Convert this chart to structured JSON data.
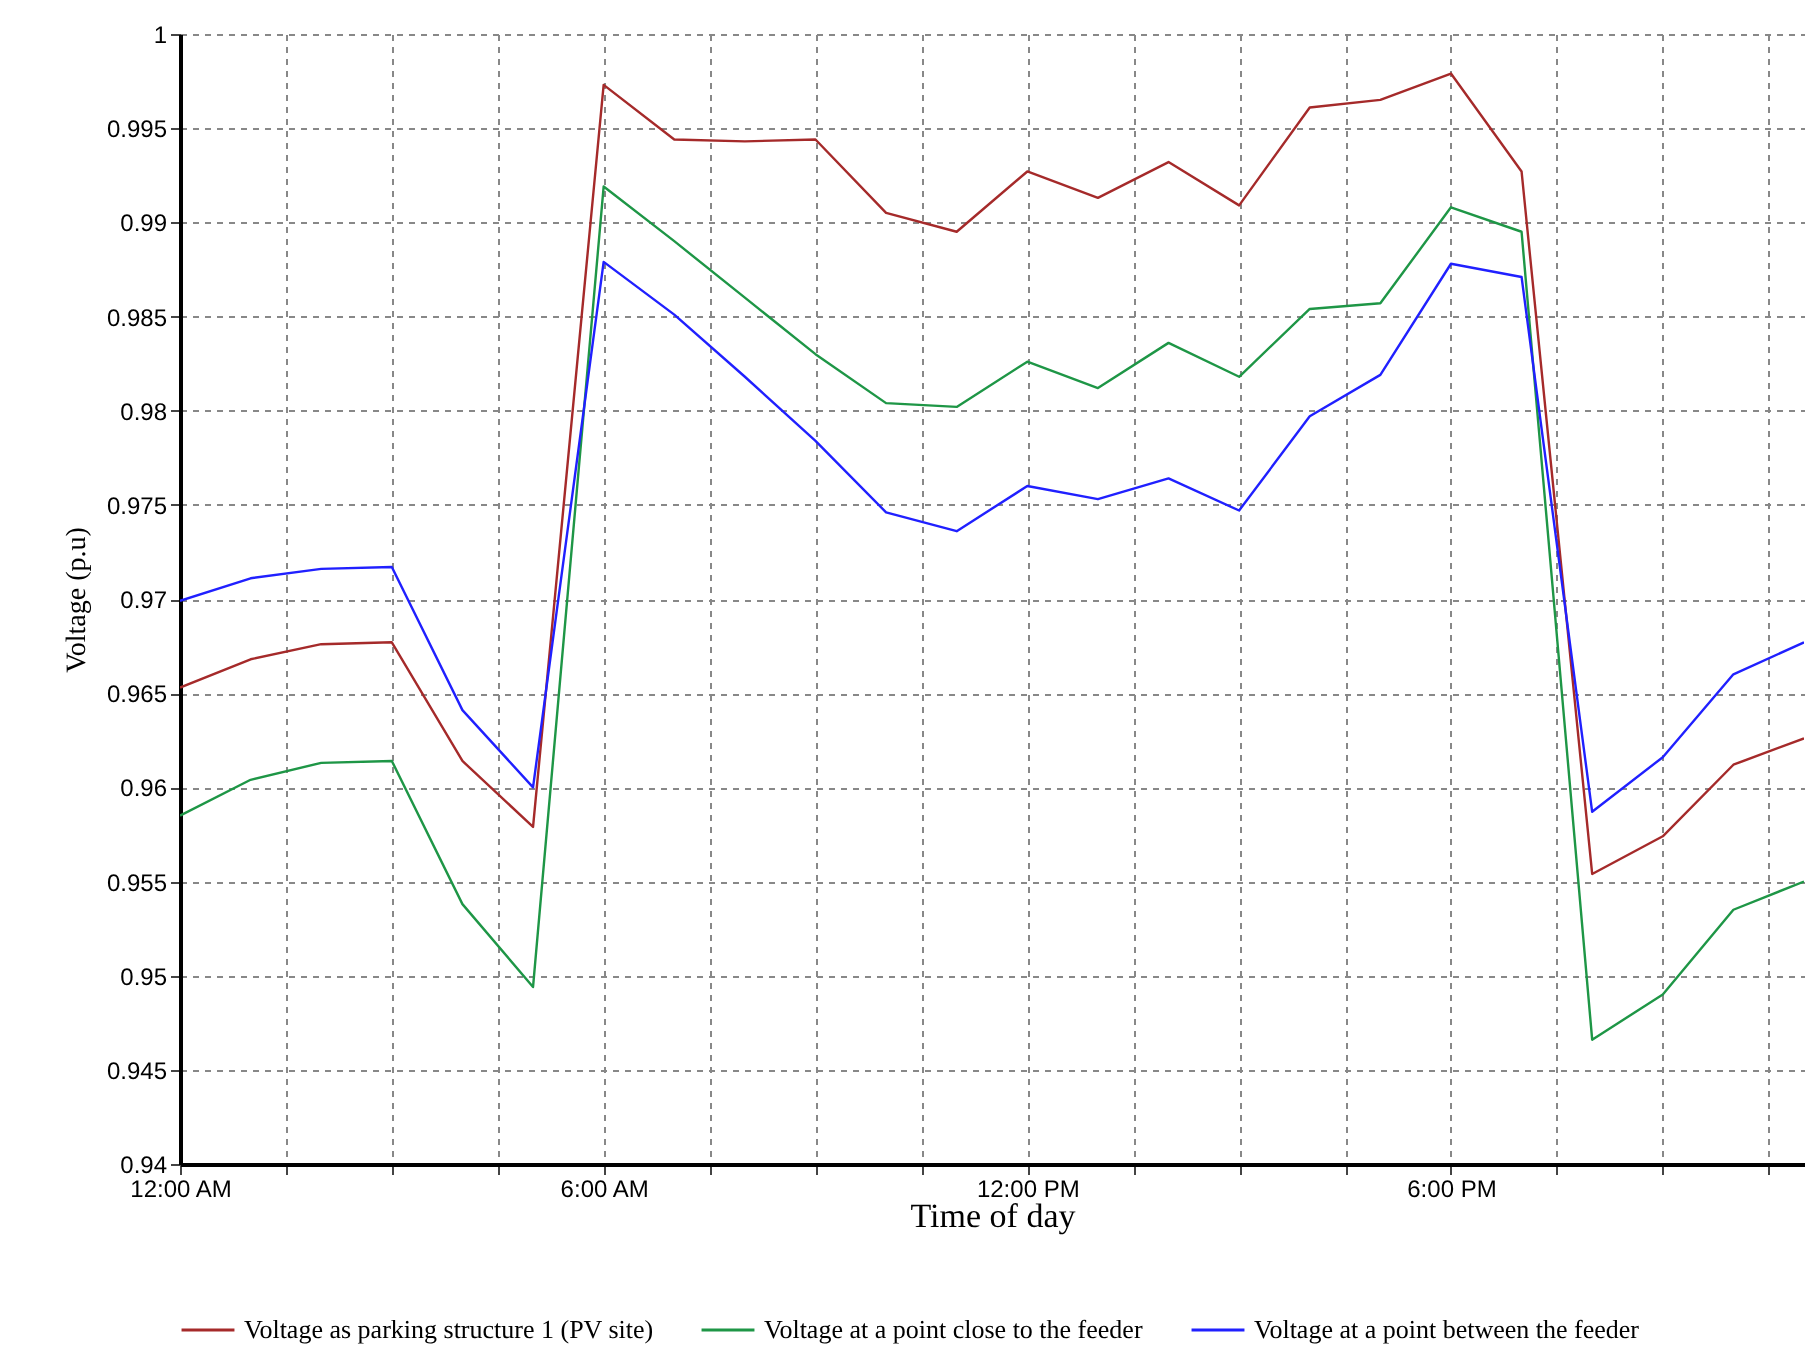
{
  "chart_data": {
    "type": "line",
    "xlabel": "Time of day",
    "ylabel": "Voltage (p.u)",
    "x": [
      0,
      1,
      2,
      3,
      4,
      5,
      6,
      7,
      8,
      9,
      10,
      11,
      12,
      13,
      14,
      15,
      16,
      17,
      18,
      19,
      20,
      21,
      22,
      23
    ],
    "series": [
      {
        "name": "Voltage as parking structure 1 (PV site)",
        "color": "#a52a2a",
        "values": [
          0.9653,
          0.9668,
          0.9676,
          0.9677,
          0.9614,
          0.9579,
          0.9973,
          0.9944,
          0.9943,
          0.9944,
          0.9905,
          0.9895,
          0.9927,
          0.9913,
          0.9932,
          0.9909,
          0.9961,
          0.9965,
          0.9979,
          0.9927,
          0.9554,
          0.9574,
          0.9612,
          0.9626
        ]
      },
      {
        "name": "Voltage at a point close to the feeder",
        "color": "#1e9646",
        "values": [
          0.9585,
          0.9604,
          0.9613,
          0.9614,
          0.9538,
          0.9494,
          0.9919,
          0.989,
          0.986,
          0.983,
          0.9804,
          0.9802,
          0.9826,
          0.9812,
          0.9836,
          0.9818,
          0.9854,
          0.9857,
          0.9908,
          0.9895,
          0.9466,
          0.949,
          0.9535,
          0.955
        ]
      },
      {
        "name": "Voltage at a point between the feeder",
        "color": "#2020ff",
        "values": [
          0.9699,
          0.9711,
          0.9716,
          0.9717,
          0.9641,
          0.96,
          0.9879,
          0.9851,
          0.9818,
          0.9784,
          0.9746,
          0.9736,
          0.976,
          0.9753,
          0.9764,
          0.9747,
          0.9797,
          0.9819,
          0.9878,
          0.9871,
          0.9587,
          0.9616,
          0.966,
          0.9677
        ]
      }
    ],
    "xlim": [
      0,
      23
    ],
    "xticks": [
      {
        "value": 0,
        "label": "12:00 AM"
      },
      {
        "value": 1.5,
        "label": null
      },
      {
        "value": 3,
        "label": null
      },
      {
        "value": 4.5,
        "label": null
      },
      {
        "value": 6,
        "label": "6:00 AM"
      },
      {
        "value": 7.5,
        "label": null
      },
      {
        "value": 9,
        "label": null
      },
      {
        "value": 10.5,
        "label": null
      },
      {
        "value": 12,
        "label": "12:00 PM"
      },
      {
        "value": 13.5,
        "label": null
      },
      {
        "value": 15,
        "label": null
      },
      {
        "value": 16.5,
        "label": null
      },
      {
        "value": 18,
        "label": "6:00 PM"
      },
      {
        "value": 19.5,
        "label": null
      },
      {
        "value": 21,
        "label": null
      },
      {
        "value": 22.5,
        "label": null
      }
    ],
    "ylim": [
      0.94,
      1
    ],
    "yticks": [
      0.94,
      0.945,
      0.95,
      0.955,
      0.96,
      0.965,
      0.97,
      0.975,
      0.98,
      0.985,
      0.99,
      0.995,
      1
    ],
    "grid": true,
    "legend": "bottom",
    "marker": "none",
    "line_style": "solid"
  }
}
